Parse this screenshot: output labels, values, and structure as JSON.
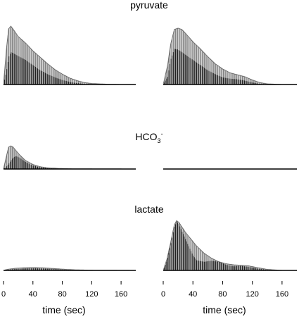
{
  "chart_data": {
    "type": "line",
    "description_rows": [
      "pyruvate",
      "HCO3-",
      "lactate"
    ],
    "row_titles": [
      {
        "main": "pyruvate",
        "sub": "",
        "sup": ""
      },
      {
        "main": "HCO",
        "sub": "3",
        "sup": "-"
      },
      {
        "main": "lactate",
        "sub": "",
        "sup": ""
      }
    ],
    "xlabel": "time (sec)",
    "xlim": [
      0,
      180
    ],
    "xticks": [
      0,
      40,
      80,
      120,
      160
    ],
    "xtick_labels": [
      "0",
      "40",
      "80",
      "120",
      "160"
    ],
    "ylim": [
      0,
      1
    ],
    "grid": false,
    "legend": "none",
    "line_color": "#000000",
    "envelope_color": "#6e6e6e",
    "panels": [
      {
        "row": 0,
        "col": 0,
        "series": "pyruvate, left",
        "x": [
          0,
          4,
          7,
          10,
          14,
          20,
          30,
          40,
          50,
          60,
          70,
          80,
          90,
          100,
          110,
          120,
          140,
          160,
          180
        ],
        "y": [
          0,
          0.55,
          0.86,
          0.9,
          0.84,
          0.74,
          0.64,
          0.52,
          0.42,
          0.32,
          0.23,
          0.16,
          0.1,
          0.06,
          0.03,
          0.015,
          0.005,
          0,
          0
        ],
        "inner": [
          0,
          0.2,
          0.42,
          0.5,
          0.48,
          0.44,
          0.38,
          0.3,
          0.22,
          0.16,
          0.11,
          0.07,
          0.04,
          0.02,
          0.01,
          0.005,
          0,
          0,
          0
        ]
      },
      {
        "row": 0,
        "col": 1,
        "series": "pyruvate, right",
        "x": [
          0,
          6,
          10,
          15,
          20,
          25,
          30,
          40,
          50,
          60,
          70,
          80,
          90,
          100,
          110,
          120,
          130,
          140,
          160,
          180
        ],
        "y": [
          0,
          0.3,
          0.62,
          0.85,
          0.87,
          0.85,
          0.79,
          0.66,
          0.55,
          0.43,
          0.32,
          0.24,
          0.18,
          0.15,
          0.12,
          0.07,
          0.03,
          0.01,
          0,
          0
        ],
        "inner": [
          0,
          0.12,
          0.38,
          0.55,
          0.54,
          0.5,
          0.46,
          0.38,
          0.3,
          0.22,
          0.16,
          0.11,
          0.09,
          0.08,
          0.06,
          0.03,
          0.01,
          0,
          0,
          0
        ]
      },
      {
        "row": 1,
        "col": 0,
        "series": "HCO3-, left",
        "x": [
          0,
          3,
          7,
          10,
          13,
          17,
          22,
          30,
          40,
          50,
          60,
          80,
          100,
          180
        ],
        "y": [
          0,
          0.35,
          0.78,
          0.82,
          0.78,
          0.65,
          0.5,
          0.3,
          0.16,
          0.08,
          0.04,
          0.015,
          0.005,
          0
        ],
        "inner": [
          0,
          0.05,
          0.18,
          0.3,
          0.4,
          0.46,
          0.4,
          0.25,
          0.12,
          0.06,
          0.03,
          0.01,
          0,
          0
        ]
      },
      {
        "row": 1,
        "col": 1,
        "series": "HCO3-, right",
        "x": [
          0,
          180
        ],
        "y": [
          0,
          0
        ],
        "inner": [
          0,
          0
        ]
      },
      {
        "row": 2,
        "col": 0,
        "series": "lactate, left",
        "x": [
          0,
          5,
          15,
          25,
          35,
          45,
          55,
          65,
          75,
          85,
          100,
          120,
          180
        ],
        "y": [
          0,
          0.02,
          0.04,
          0.05,
          0.055,
          0.055,
          0.05,
          0.04,
          0.03,
          0.02,
          0.01,
          0.005,
          0
        ],
        "inner": [
          0,
          0.01,
          0.025,
          0.035,
          0.04,
          0.04,
          0.035,
          0.03,
          0.02,
          0.012,
          0.006,
          0.002,
          0
        ]
      },
      {
        "row": 2,
        "col": 1,
        "series": "lactate, right",
        "x": [
          0,
          5,
          10,
          15,
          18,
          21,
          25,
          30,
          35,
          40,
          45,
          55,
          65,
          75,
          85,
          95,
          105,
          115,
          125,
          140,
          160,
          180
        ],
        "y": [
          0,
          0.22,
          0.55,
          0.9,
          0.98,
          0.95,
          0.86,
          0.75,
          0.66,
          0.57,
          0.48,
          0.34,
          0.24,
          0.17,
          0.13,
          0.11,
          0.1,
          0.09,
          0.06,
          0.02,
          0,
          0
        ],
        "inner": [
          0,
          0.18,
          0.5,
          0.86,
          0.96,
          0.92,
          0.78,
          0.62,
          0.46,
          0.3,
          0.2,
          0.17,
          0.19,
          0.17,
          0.11,
          0.08,
          0.09,
          0.07,
          0.04,
          0.01,
          0,
          0
        ]
      }
    ]
  }
}
